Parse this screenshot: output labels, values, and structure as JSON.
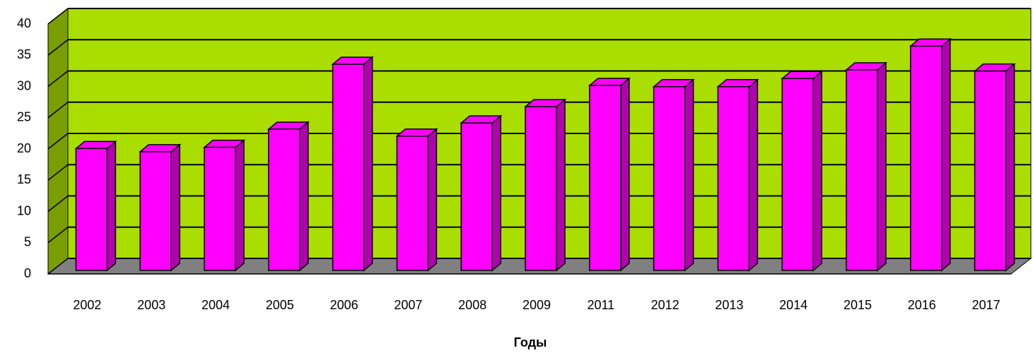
{
  "chart_data": {
    "type": "bar3d",
    "x_label": "Годы",
    "categories": [
      "2002",
      "2003",
      "2004",
      "2005",
      "2006",
      "2007",
      "2008",
      "2009",
      "2011",
      "2012",
      "2013",
      "2014",
      "2015",
      "2016",
      "2017"
    ],
    "values": [
      19.5,
      19,
      19.7,
      22.6,
      33,
      21.5,
      23.6,
      26.2,
      29.6,
      29.4,
      29.4,
      30.7,
      32.1,
      35.9,
      31.9
    ],
    "color": "#ff00ff",
    "wall_color": "#aadd00",
    "floor_color": "#808080",
    "ylim": [
      0,
      40
    ],
    "yticks": [
      0,
      5,
      10,
      15,
      20,
      25,
      30,
      35,
      40
    ],
    "grid": true
  }
}
